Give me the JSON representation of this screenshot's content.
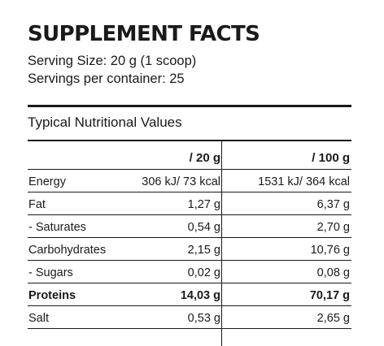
{
  "title": "SUPPLEMENT FACTS",
  "serving_size": "Serving Size: 20 g (1 scoop)",
  "servings_per_container": "Servings per container: 25",
  "section_heading": "Typical Nutritional Values",
  "table": {
    "headers": [
      "",
      "/ 20 g",
      "/ 100 g"
    ],
    "rows": [
      {
        "label": "Energy",
        "per20": "306 kJ/ 73 kcal",
        "per100": "1531 kJ/ 364 kcal",
        "bold": false
      },
      {
        "label": "Fat",
        "per20": "1,27 g",
        "per100": "6,37 g",
        "bold": false
      },
      {
        "label": "- Saturates",
        "per20": "0,54 g",
        "per100": "2,70 g",
        "bold": false
      },
      {
        "label": "Carbohydrates",
        "per20": "2,15 g",
        "per100": "10,76 g",
        "bold": false
      },
      {
        "label": "- Sugars",
        "per20": "0,02 g",
        "per100": "0,08 g",
        "bold": false
      },
      {
        "label": "Proteins",
        "per20": "14,03 g",
        "per100": "70,17 g",
        "bold": true
      },
      {
        "label": "Salt",
        "per20": "0,53 g",
        "per100": "2,65 g",
        "bold": false
      }
    ]
  }
}
